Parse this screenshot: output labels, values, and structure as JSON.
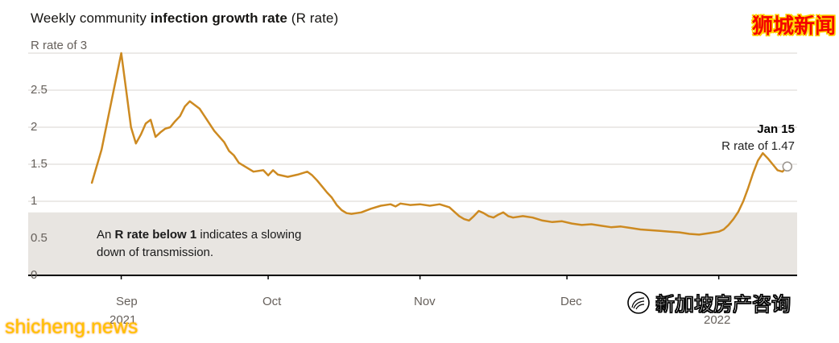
{
  "title": {
    "prefix": "Weekly community ",
    "bold": "infection growth rate",
    "suffix": " (R rate)"
  },
  "axis": {
    "top_label": "R rate of 3",
    "yticks": [
      "2.5",
      "2",
      "1.5",
      "1",
      "0.5",
      "0"
    ],
    "months": [
      "Sep",
      "Oct",
      "Nov",
      "Dec"
    ],
    "years": [
      "2021",
      "2022"
    ]
  },
  "note": {
    "line1_prefix": "An ",
    "line1_bold": "R rate below 1",
    "line1_suffix": " indicates a slowing",
    "line2": "down of transmission."
  },
  "endnote": {
    "date_label": "Jan 15",
    "value_label": "R rate of 1.47"
  },
  "watermarks": {
    "top_right": "狮城新闻",
    "bottom_left": "shicheng.news",
    "bottom_right": "新加坡房产咨询"
  },
  "colors": {
    "line": "#cd8a21",
    "band": "#e8e5e1",
    "grid": "#d8d6d1",
    "axis_line": "#000000",
    "axis_text": "#66605b",
    "marker_stroke": "#9a948e"
  },
  "chart_data": {
    "type": "line",
    "title": "Weekly community infection growth rate (R rate)",
    "ylabel": "R rate",
    "ylim": [
      0,
      3
    ],
    "xlim": [
      "2021-08-13",
      "2022-01-17"
    ],
    "grid": "horizontal",
    "gridline_values": [
      3,
      2.5,
      2,
      1.5,
      1
    ],
    "month_ticks": [
      "2021-09-01",
      "2021-10-01",
      "2021-11-01",
      "2021-12-01",
      "2022-01-01"
    ],
    "band": {
      "from": 0,
      "to": 0.85
    },
    "end_point": {
      "date": "2022-01-15",
      "value": 1.47
    },
    "series": [
      {
        "name": "R rate",
        "points": [
          [
            "2021-08-26",
            1.25
          ],
          [
            "2021-08-28",
            1.7
          ],
          [
            "2021-08-30",
            2.35
          ],
          [
            "2021-09-01",
            3.0
          ],
          [
            "2021-09-02",
            2.5
          ],
          [
            "2021-09-03",
            2.0
          ],
          [
            "2021-09-04",
            1.78
          ],
          [
            "2021-09-05",
            1.9
          ],
          [
            "2021-09-06",
            2.05
          ],
          [
            "2021-09-07",
            2.1
          ],
          [
            "2021-09-08",
            1.87
          ],
          [
            "2021-09-09",
            1.93
          ],
          [
            "2021-09-10",
            1.98
          ],
          [
            "2021-09-11",
            2.0
          ],
          [
            "2021-09-12",
            2.08
          ],
          [
            "2021-09-13",
            2.15
          ],
          [
            "2021-09-14",
            2.28
          ],
          [
            "2021-09-15",
            2.35
          ],
          [
            "2021-09-16",
            2.3
          ],
          [
            "2021-09-17",
            2.25
          ],
          [
            "2021-09-18",
            2.15
          ],
          [
            "2021-09-20",
            1.95
          ],
          [
            "2021-09-22",
            1.8
          ],
          [
            "2021-09-23",
            1.68
          ],
          [
            "2021-09-24",
            1.62
          ],
          [
            "2021-09-25",
            1.52
          ],
          [
            "2021-09-26",
            1.48
          ],
          [
            "2021-09-28",
            1.4
          ],
          [
            "2021-09-30",
            1.42
          ],
          [
            "2021-10-01",
            1.35
          ],
          [
            "2021-10-02",
            1.42
          ],
          [
            "2021-10-03",
            1.36
          ],
          [
            "2021-10-05",
            1.33
          ],
          [
            "2021-10-07",
            1.36
          ],
          [
            "2021-10-09",
            1.4
          ],
          [
            "2021-10-10",
            1.35
          ],
          [
            "2021-10-11",
            1.28
          ],
          [
            "2021-10-12",
            1.2
          ],
          [
            "2021-10-13",
            1.12
          ],
          [
            "2021-10-14",
            1.05
          ],
          [
            "2021-10-15",
            0.95
          ],
          [
            "2021-10-16",
            0.88
          ],
          [
            "2021-10-17",
            0.84
          ],
          [
            "2021-10-18",
            0.83
          ],
          [
            "2021-10-20",
            0.85
          ],
          [
            "2021-10-22",
            0.9
          ],
          [
            "2021-10-24",
            0.94
          ],
          [
            "2021-10-26",
            0.96
          ],
          [
            "2021-10-27",
            0.93
          ],
          [
            "2021-10-28",
            0.97
          ],
          [
            "2021-10-30",
            0.95
          ],
          [
            "2021-11-01",
            0.96
          ],
          [
            "2021-11-03",
            0.94
          ],
          [
            "2021-11-05",
            0.96
          ],
          [
            "2021-11-07",
            0.92
          ],
          [
            "2021-11-08",
            0.86
          ],
          [
            "2021-11-09",
            0.8
          ],
          [
            "2021-11-10",
            0.76
          ],
          [
            "2021-11-11",
            0.74
          ],
          [
            "2021-11-12",
            0.8
          ],
          [
            "2021-11-13",
            0.87
          ],
          [
            "2021-11-14",
            0.84
          ],
          [
            "2021-11-15",
            0.8
          ],
          [
            "2021-11-16",
            0.78
          ],
          [
            "2021-11-17",
            0.82
          ],
          [
            "2021-11-18",
            0.85
          ],
          [
            "2021-11-19",
            0.8
          ],
          [
            "2021-11-20",
            0.78
          ],
          [
            "2021-11-22",
            0.8
          ],
          [
            "2021-11-24",
            0.78
          ],
          [
            "2021-11-26",
            0.74
          ],
          [
            "2021-11-28",
            0.72
          ],
          [
            "2021-11-30",
            0.73
          ],
          [
            "2021-12-02",
            0.7
          ],
          [
            "2021-12-04",
            0.68
          ],
          [
            "2021-12-06",
            0.69
          ],
          [
            "2021-12-08",
            0.67
          ],
          [
            "2021-12-10",
            0.65
          ],
          [
            "2021-12-12",
            0.66
          ],
          [
            "2021-12-14",
            0.64
          ],
          [
            "2021-12-16",
            0.62
          ],
          [
            "2021-12-18",
            0.61
          ],
          [
            "2021-12-20",
            0.6
          ],
          [
            "2021-12-22",
            0.59
          ],
          [
            "2021-12-24",
            0.58
          ],
          [
            "2021-12-26",
            0.56
          ],
          [
            "2021-12-28",
            0.55
          ],
          [
            "2021-12-30",
            0.57
          ],
          [
            "2022-01-01",
            0.59
          ],
          [
            "2022-01-02",
            0.62
          ],
          [
            "2022-01-03",
            0.68
          ],
          [
            "2022-01-04",
            0.76
          ],
          [
            "2022-01-05",
            0.86
          ],
          [
            "2022-01-06",
            1.0
          ],
          [
            "2022-01-07",
            1.18
          ],
          [
            "2022-01-08",
            1.38
          ],
          [
            "2022-01-09",
            1.55
          ],
          [
            "2022-01-10",
            1.65
          ],
          [
            "2022-01-11",
            1.58
          ],
          [
            "2022-01-12",
            1.5
          ],
          [
            "2022-01-13",
            1.42
          ],
          [
            "2022-01-14",
            1.4
          ],
          [
            "2022-01-15",
            1.47
          ]
        ]
      }
    ]
  }
}
